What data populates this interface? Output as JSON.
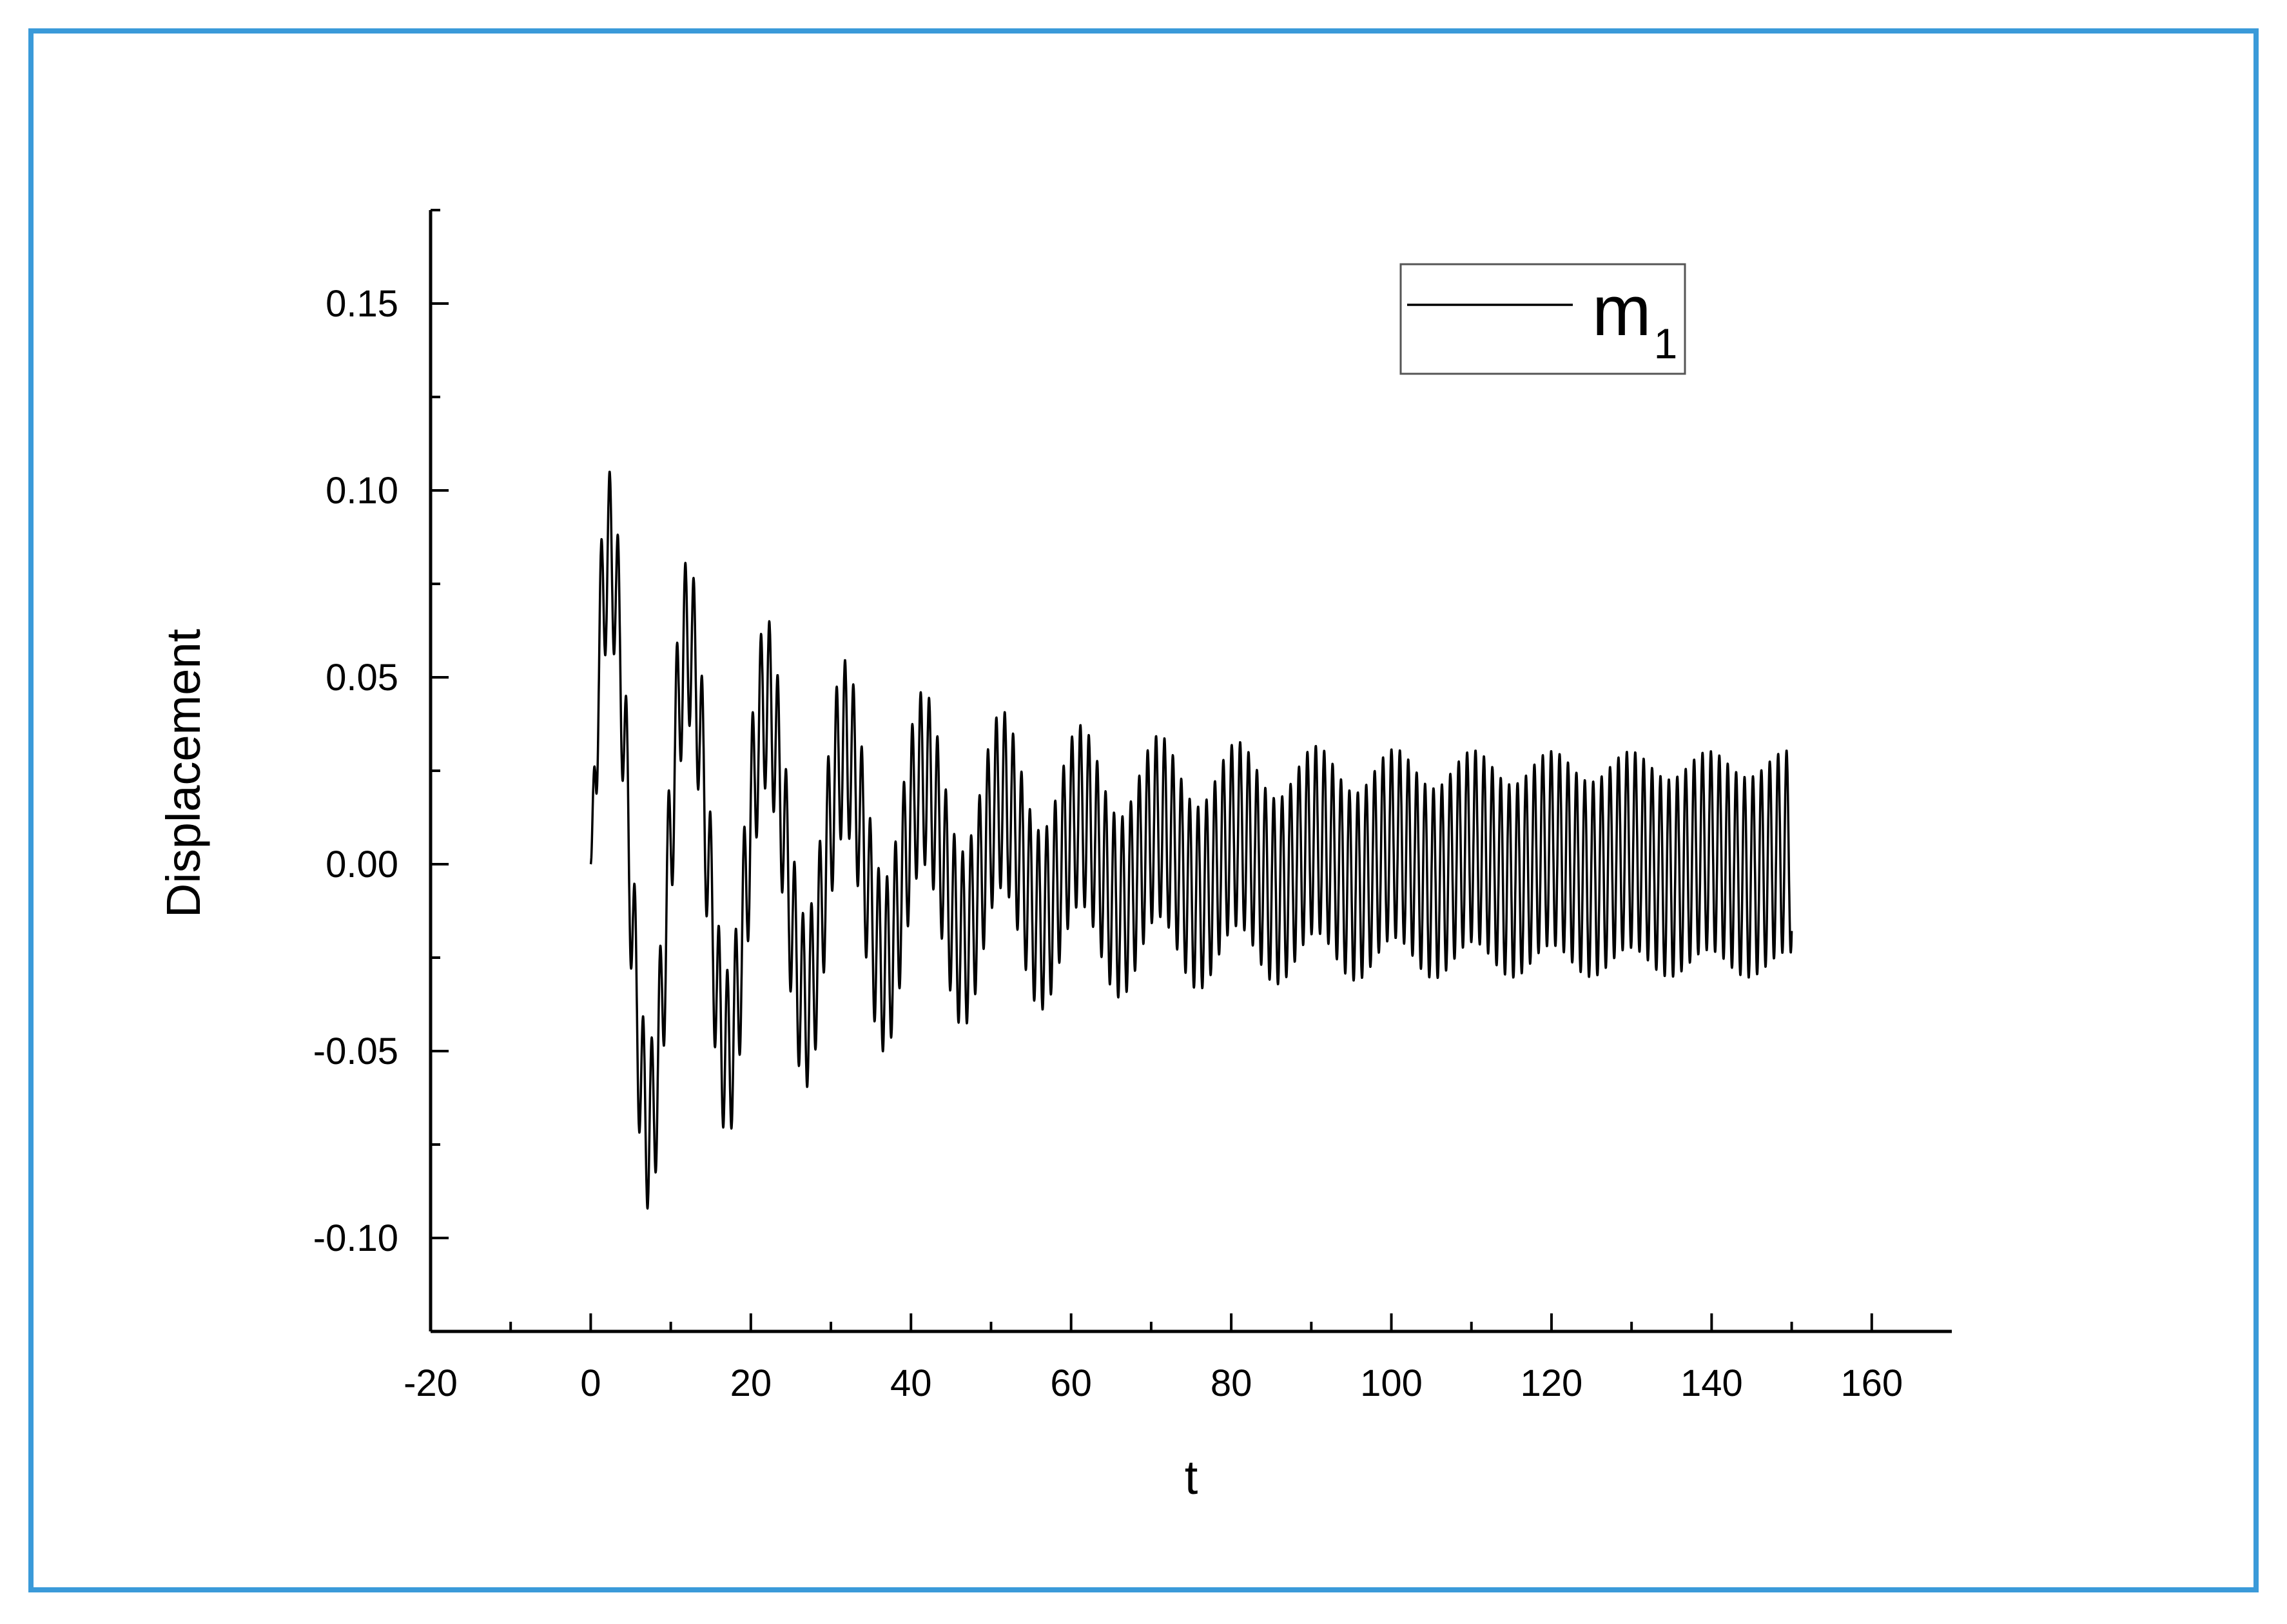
{
  "chart_data": {
    "type": "line",
    "xlabel": "t",
    "ylabel": "Displacement",
    "xlim": [
      -20,
      170
    ],
    "ylim": [
      -0.125,
      0.175
    ],
    "x_ticks": [
      -20,
      0,
      20,
      40,
      60,
      80,
      100,
      120,
      140,
      160
    ],
    "x_tick_labels": [
      "-20",
      "0",
      "20",
      "40",
      "60",
      "80",
      "100",
      "120",
      "140",
      "160"
    ],
    "y_ticks": [
      -0.1,
      -0.05,
      0.0,
      0.05,
      0.1,
      0.15
    ],
    "y_tick_labels": [
      "-0.10",
      "-0.05",
      "0.00",
      "0.05",
      "0.10",
      "0.15"
    ],
    "legend": {
      "position": "top-right",
      "label": "m",
      "subscript": "1"
    },
    "series": [
      {
        "name": "m1",
        "color": "#000000",
        "x_start": 0,
        "x_end": 150,
        "slow_component": {
          "amplitude_start": 0.09,
          "amplitude_end": 0.003,
          "period": 9.8,
          "decay": 0.035
        },
        "fast_component": {
          "amplitude_start": 0.022,
          "amplitude_end": 0.027,
          "period": 1.05
        },
        "envelope_samples": [
          {
            "t": 1,
            "max": 0.114,
            "min": 0.06
          },
          {
            "t": 7,
            "max": 0.03,
            "min": -0.105
          },
          {
            "t": 11.5,
            "max": 0.098,
            "min": 0.04
          },
          {
            "t": 16.5,
            "max": 0.02,
            "min": -0.09
          },
          {
            "t": 21,
            "max": 0.083,
            "min": 0.02
          },
          {
            "t": 26,
            "max": 0.01,
            "min": -0.08
          },
          {
            "t": 30.5,
            "max": 0.075,
            "min": 0.0
          },
          {
            "t": 36,
            "max": 0.0,
            "min": -0.069
          },
          {
            "t": 40.5,
            "max": 0.065,
            "min": -0.005
          },
          {
            "t": 45.5,
            "max": -0.005,
            "min": -0.063
          },
          {
            "t": 50,
            "max": 0.057,
            "min": -0.01
          },
          {
            "t": 55,
            "max": -0.005,
            "min": -0.055
          },
          {
            "t": 60,
            "max": 0.053,
            "min": -0.01
          },
          {
            "t": 75,
            "max": 0.045,
            "min": -0.045
          },
          {
            "t": 100,
            "max": 0.035,
            "min": -0.038
          },
          {
            "t": 125,
            "max": 0.033,
            "min": -0.032
          },
          {
            "t": 150,
            "max": 0.03,
            "min": -0.03
          }
        ]
      }
    ]
  }
}
